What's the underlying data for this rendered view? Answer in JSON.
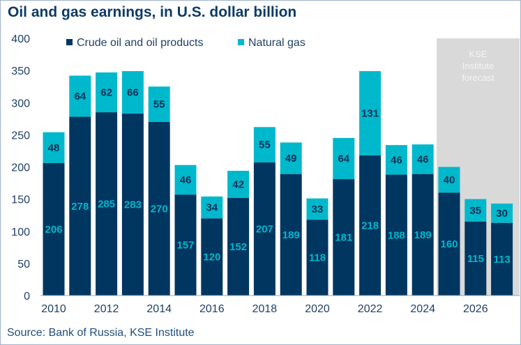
{
  "chart_data": {
    "type": "bar",
    "stacked": true,
    "title": "Oil and gas earnings, in U.S. dollar billion",
    "source": "Source: Bank of Russia, KSE Institute",
    "xlabel": "",
    "ylabel": "",
    "ylim": [
      0,
      400
    ],
    "yticks": [
      0,
      50,
      100,
      150,
      200,
      250,
      300,
      350,
      400
    ],
    "categories": [
      "2010",
      "2011",
      "2012",
      "2013",
      "2014",
      "2015",
      "2016",
      "2017",
      "2018",
      "2019",
      "2020",
      "2021",
      "2022",
      "2023",
      "2024",
      "2025",
      "2026",
      "2027"
    ],
    "xtick_labels": [
      "2010",
      "2012",
      "2014",
      "2016",
      "2018",
      "2020",
      "2022",
      "2024",
      "2026"
    ],
    "series": [
      {
        "name": "Crude oil and oil products",
        "color": "#003660",
        "values": [
          206,
          278,
          285,
          283,
          270,
          157,
          120,
          152,
          207,
          189,
          118,
          181,
          218,
          188,
          189,
          160,
          115,
          113
        ]
      },
      {
        "name": "Natural gas",
        "color": "#00b8cc",
        "values": [
          48,
          64,
          62,
          66,
          55,
          46,
          34,
          42,
          55,
          49,
          33,
          64,
          131,
          46,
          46,
          40,
          35,
          30
        ]
      }
    ],
    "legend_position": "top",
    "grid": false,
    "annotation": {
      "text_lines": [
        "KSE",
        "Institute",
        "forecast"
      ],
      "start_category": "2025",
      "end_category": "2027",
      "color": "#d9d9d9"
    }
  }
}
